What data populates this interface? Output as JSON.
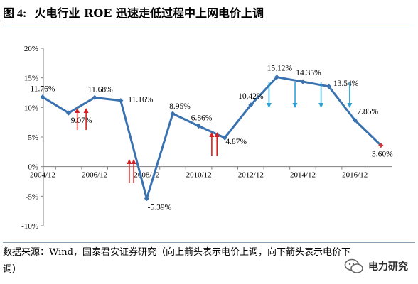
{
  "figure": {
    "label": "图 4:",
    "title": "火电行业 ROE 迅速走低过程中上网电价上调",
    "source": "数据来源：Wind，国泰君安证券研究（向上箭头表示电价上调，向下箭头表示电价下调）",
    "watermark": "电力研究"
  },
  "chart_data": {
    "type": "line",
    "title": "",
    "xlabel": "",
    "ylabel": "",
    "ylim": [
      -10,
      20
    ],
    "yticks": [
      "-10%",
      "-5%",
      "0%",
      "5%",
      "10%",
      "15%",
      "20%"
    ],
    "xticks": [
      "2004/12",
      "2006/12",
      "2008/12",
      "2010/12",
      "2012/12",
      "2014/12",
      "2016/12"
    ],
    "grid": false,
    "series": [
      {
        "values": [
          11.76,
          9.07,
          11.68,
          11.16,
          -5.39,
          8.95,
          6.86,
          4.87,
          10.42,
          15.12,
          14.35,
          13.54,
          7.85,
          3.6
        ],
        "labels": [
          "11.76%",
          "9.07%",
          "11.68%",
          "11.16%",
          "-5.39%",
          "8.95%",
          "6.86%",
          "4.87%",
          "10.42%",
          "15.12%",
          "14.35%",
          "13.54%",
          "7.85%",
          "3.60%"
        ],
        "color": "#3a72b0",
        "last_point_color": "#cc3b3b"
      }
    ],
    "price_adjustments": {
      "up_color": "#d42020",
      "down_color": "#2ba3d8",
      "up": [
        1.33,
        1.67,
        3.33,
        3.5,
        6.5,
        6.7
      ],
      "down": [
        8.7,
        9.7,
        10.7,
        11.8
      ]
    }
  }
}
